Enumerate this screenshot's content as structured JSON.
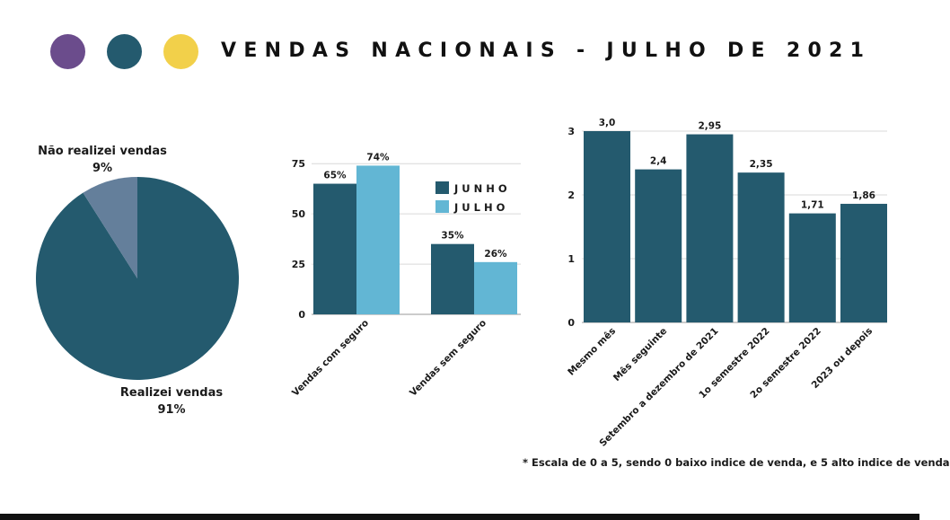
{
  "header": {
    "title": "VENDAS NACIONAIS - JULHO DE 2021",
    "dots": [
      "#6b4c8c",
      "#245a6e",
      "#f2d04a"
    ]
  },
  "colors": {
    "dark_teal": "#245a6e",
    "light_blue": "#62b6d4",
    "slate": "#647f9b",
    "axis_text": "#1a1a1a",
    "grid": "#d9d9d9"
  },
  "footnote": "* Escala de 0 a 5, sendo 0 baixo indice de venda, e 5 alto indice de venda",
  "chart_data": [
    {
      "type": "pie",
      "slices": [
        {
          "label": "Realizei vendas",
          "value_label": "91%",
          "value": 91,
          "color": "#245a6e"
        },
        {
          "label": "Não realizei vendas",
          "value_label": "9%",
          "value": 9,
          "color": "#647f9b"
        }
      ]
    },
    {
      "type": "bar",
      "categories": [
        "Vendas com seguro",
        "Vendas sem seguro"
      ],
      "series": [
        {
          "name": "JUNHO",
          "values": [
            65,
            35
          ],
          "labels": [
            "65%",
            "35%"
          ],
          "color": "#245a6e"
        },
        {
          "name": "JULHO",
          "values": [
            74,
            26
          ],
          "labels": [
            "74%",
            "26%"
          ],
          "color": "#62b6d4"
        }
      ],
      "yticks": [
        "0",
        "25",
        "50",
        "75"
      ],
      "ylim": [
        0,
        80
      ],
      "legend_position": "top-right",
      "grid": true
    },
    {
      "type": "bar",
      "categories": [
        "Mesmo mês",
        "Mês seguinte",
        "Setembro a dezembro de 2021",
        "1o semestre 2022",
        "2o semestre 2022",
        "2023 ou depois"
      ],
      "values": [
        3.0,
        2.4,
        2.95,
        2.35,
        1.71,
        1.86
      ],
      "value_labels": [
        "3,0",
        "2,4",
        "2,95",
        "2,35",
        "1,71",
        "1,86"
      ],
      "yticks": [
        "0",
        "1",
        "2",
        "3"
      ],
      "ylim": [
        0,
        3
      ],
      "color": "#245a6e",
      "grid": true
    }
  ]
}
